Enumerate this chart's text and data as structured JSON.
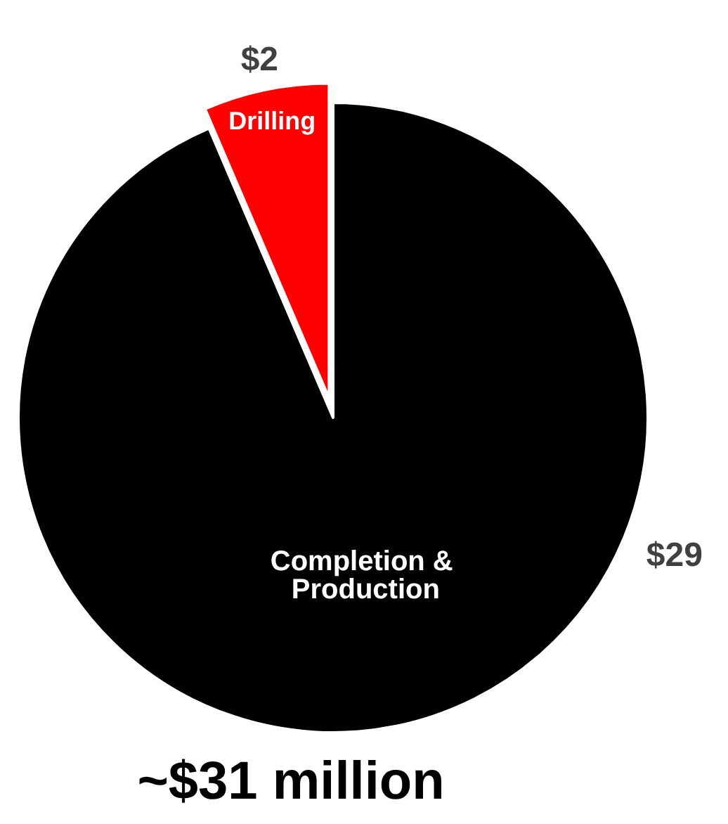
{
  "chart_data": {
    "type": "pie",
    "categories": [
      "Completion & Production",
      "Drilling"
    ],
    "values": [
      29,
      2
    ],
    "colors": [
      "#000000",
      "#ff0000"
    ],
    "value_labels": [
      "$29",
      "$2"
    ],
    "annotations": [
      "~$31 million"
    ]
  }
}
